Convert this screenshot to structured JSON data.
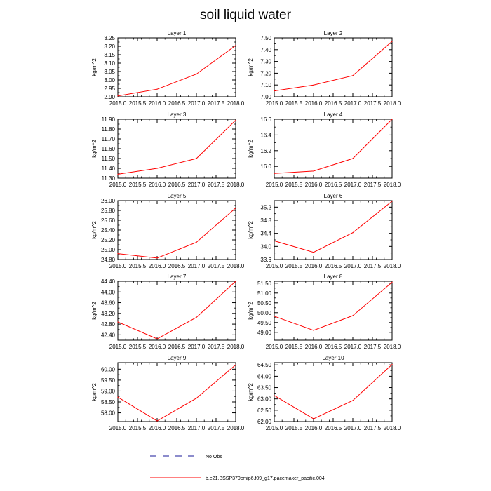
{
  "figure": {
    "title": "soil liquid water",
    "legend": {
      "obs_label": "No Obs",
      "model_label": "b.e21.BSSP370cmip6.f09_g17.pacemaker_pacific.004"
    },
    "colors": {
      "model": "#ff0000",
      "obs": "#1a1a99",
      "axis": "#000000"
    }
  },
  "chart_data": [
    {
      "type": "line",
      "title": "Layer 1",
      "xlabel": "",
      "ylabel": "kg/m^2",
      "xlim": [
        2015.0,
        2018.0
      ],
      "ylim": [
        2.9,
        3.25
      ],
      "xticks": [
        2015.0,
        2015.5,
        2016.0,
        2016.5,
        2017.0,
        2017.5,
        2018.0
      ],
      "xtick_labels": [
        "2015.0",
        "2015.5",
        "2016.0",
        "2016.5",
        "2017.0",
        "2017.5",
        "2018.0"
      ],
      "yticks": [
        2.9,
        2.95,
        3.0,
        3.05,
        3.1,
        3.15,
        3.2,
        3.25
      ],
      "ytick_labels": [
        "2.90",
        "2.95",
        "3.00",
        "3.05",
        "3.10",
        "3.15",
        "3.20",
        "3.25"
      ],
      "series": [
        {
          "name": "b.e21.BSSP370cmip6.f09_g17.pacemaker_pacific.004",
          "x": [
            2015,
            2016,
            2017,
            2018
          ],
          "values": [
            2.905,
            2.945,
            3.035,
            3.205
          ]
        }
      ]
    },
    {
      "type": "line",
      "title": "Layer 2",
      "xlabel": "",
      "ylabel": "kg/m^2",
      "xlim": [
        2015.0,
        2018.0
      ],
      "ylim": [
        7.0,
        7.5
      ],
      "xticks": [
        2015.0,
        2015.5,
        2016.0,
        2016.5,
        2017.0,
        2017.5,
        2018.0
      ],
      "xtick_labels": [
        "2015.0",
        "2015.5",
        "2016.0",
        "2016.5",
        "2017.0",
        "2017.5",
        "2018.0"
      ],
      "yticks": [
        7.0,
        7.1,
        7.2,
        7.3,
        7.4,
        7.5
      ],
      "ytick_labels": [
        "7.00",
        "7.10",
        "7.20",
        "7.30",
        "7.40",
        "7.50"
      ],
      "series": [
        {
          "name": "b.e21.BSSP370cmip6.f09_g17.pacemaker_pacific.004",
          "x": [
            2015,
            2016,
            2017,
            2018
          ],
          "values": [
            7.05,
            7.1,
            7.18,
            7.47
          ]
        }
      ]
    },
    {
      "type": "line",
      "title": "Layer 3",
      "xlabel": "",
      "ylabel": "kg/m^2",
      "xlim": [
        2015.0,
        2018.0
      ],
      "ylim": [
        11.3,
        11.9
      ],
      "xticks": [
        2015.0,
        2015.5,
        2016.0,
        2016.5,
        2017.0,
        2017.5,
        2018.0
      ],
      "xtick_labels": [
        "2015.0",
        "2015.5",
        "2016.0",
        "2016.5",
        "2017.0",
        "2017.5",
        "2018.0"
      ],
      "yticks": [
        11.3,
        11.4,
        11.5,
        11.6,
        11.7,
        11.8,
        11.9
      ],
      "ytick_labels": [
        "11.30",
        "11.40",
        "11.50",
        "11.60",
        "11.70",
        "11.80",
        "11.90"
      ],
      "series": [
        {
          "name": "b.e21.BSSP370cmip6.f09_g17.pacemaker_pacific.004",
          "x": [
            2015,
            2016,
            2017,
            2018
          ],
          "values": [
            11.34,
            11.4,
            11.5,
            11.89
          ]
        }
      ]
    },
    {
      "type": "line",
      "title": "Layer 4",
      "xlabel": "",
      "ylabel": "kg/m^2",
      "xlim": [
        2015.0,
        2018.0
      ],
      "ylim": [
        15.85,
        16.6
      ],
      "xticks": [
        2015.0,
        2015.5,
        2016.0,
        2016.5,
        2017.0,
        2017.5,
        2018.0
      ],
      "xtick_labels": [
        "2015.0",
        "2015.5",
        "2016.0",
        "2016.5",
        "2017.0",
        "2017.5",
        "2018.0"
      ],
      "yticks": [
        16.0,
        16.2,
        16.4,
        16.6
      ],
      "ytick_labels": [
        "16.0",
        "16.2",
        "16.4",
        "16.6"
      ],
      "series": [
        {
          "name": "b.e21.BSSP370cmip6.f09_g17.pacemaker_pacific.004",
          "x": [
            2015,
            2016,
            2017,
            2018
          ],
          "values": [
            15.91,
            15.94,
            16.1,
            16.6
          ]
        }
      ]
    },
    {
      "type": "line",
      "title": "Layer 5",
      "xlabel": "",
      "ylabel": "kg/m^2",
      "xlim": [
        2015.0,
        2018.0
      ],
      "ylim": [
        24.8,
        26.0
      ],
      "xticks": [
        2015.0,
        2015.5,
        2016.0,
        2016.5,
        2017.0,
        2017.5,
        2018.0
      ],
      "xtick_labels": [
        "2015.0",
        "2015.5",
        "2016.0",
        "2016.5",
        "2017.0",
        "2017.5",
        "2018.0"
      ],
      "yticks": [
        24.8,
        25.0,
        25.2,
        25.4,
        25.6,
        25.8,
        26.0
      ],
      "ytick_labels": [
        "24.80",
        "25.00",
        "25.20",
        "25.40",
        "25.60",
        "25.80",
        "26.00"
      ],
      "series": [
        {
          "name": "b.e21.BSSP370cmip6.f09_g17.pacemaker_pacific.004",
          "x": [
            2015,
            2016,
            2017,
            2018
          ],
          "values": [
            24.92,
            24.83,
            25.15,
            25.85
          ]
        }
      ]
    },
    {
      "type": "line",
      "title": "Layer 6",
      "xlabel": "",
      "ylabel": "kg/m^2",
      "xlim": [
        2015.0,
        2018.0
      ],
      "ylim": [
        33.6,
        35.4
      ],
      "xticks": [
        2015.0,
        2015.5,
        2016.0,
        2016.5,
        2017.0,
        2017.5,
        2018.0
      ],
      "xtick_labels": [
        "2015.0",
        "2015.5",
        "2016.0",
        "2016.5",
        "2017.0",
        "2017.5",
        "2018.0"
      ],
      "yticks": [
        33.6,
        34.0,
        34.4,
        34.8,
        35.2
      ],
      "ytick_labels": [
        "33.6",
        "34.0",
        "34.4",
        "34.8",
        "35.2"
      ],
      "series": [
        {
          "name": "b.e21.BSSP370cmip6.f09_g17.pacemaker_pacific.004",
          "x": [
            2015,
            2016,
            2017,
            2018
          ],
          "values": [
            34.17,
            33.82,
            34.42,
            35.38
          ]
        }
      ]
    },
    {
      "type": "line",
      "title": "Layer 7",
      "xlabel": "",
      "ylabel": "kg/m^2",
      "xlim": [
        2015.0,
        2018.0
      ],
      "ylim": [
        42.2,
        44.4
      ],
      "xticks": [
        2015.0,
        2015.5,
        2016.0,
        2016.5,
        2017.0,
        2017.5,
        2018.0
      ],
      "xtick_labels": [
        "2015.0",
        "2015.5",
        "2016.0",
        "2016.5",
        "2017.0",
        "2017.5",
        "2018.0"
      ],
      "yticks": [
        42.4,
        42.8,
        43.2,
        43.6,
        44.0,
        44.4
      ],
      "ytick_labels": [
        "42.40",
        "42.80",
        "43.20",
        "43.60",
        "44.00",
        "44.40"
      ],
      "series": [
        {
          "name": "b.e21.BSSP370cmip6.f09_g17.pacemaker_pacific.004",
          "x": [
            2015,
            2016,
            2017,
            2018
          ],
          "values": [
            42.88,
            42.25,
            43.05,
            44.4
          ]
        }
      ]
    },
    {
      "type": "line",
      "title": "Layer 8",
      "xlabel": "",
      "ylabel": "kg/m^2",
      "xlim": [
        2015.0,
        2018.0
      ],
      "ylim": [
        48.6,
        51.6
      ],
      "xticks": [
        2015.0,
        2015.5,
        2016.0,
        2016.5,
        2017.0,
        2017.5,
        2018.0
      ],
      "xtick_labels": [
        "2015.0",
        "2015.5",
        "2016.0",
        "2016.5",
        "2017.0",
        "2017.5",
        "2018.0"
      ],
      "yticks": [
        49.0,
        49.5,
        50.0,
        50.5,
        51.0,
        51.5
      ],
      "ytick_labels": [
        "49.00",
        "49.50",
        "50.00",
        "50.50",
        "51.00",
        "51.50"
      ],
      "series": [
        {
          "name": "b.e21.BSSP370cmip6.f09_g17.pacemaker_pacific.004",
          "x": [
            2015,
            2016,
            2017,
            2018
          ],
          "values": [
            49.82,
            49.1,
            49.85,
            51.55
          ]
        }
      ]
    },
    {
      "type": "line",
      "title": "Layer 9",
      "xlabel": "",
      "ylabel": "kg/m^2",
      "xlim": [
        2015.0,
        2018.0
      ],
      "ylim": [
        57.6,
        60.3
      ],
      "xticks": [
        2015.0,
        2015.5,
        2016.0,
        2016.5,
        2017.0,
        2017.5,
        2018.0
      ],
      "xtick_labels": [
        "2015.0",
        "2015.5",
        "2016.0",
        "2016.5",
        "2017.0",
        "2017.5",
        "2018.0"
      ],
      "yticks": [
        58.0,
        58.5,
        59.0,
        59.5,
        60.0
      ],
      "ytick_labels": [
        "58.00",
        "58.50",
        "59.00",
        "59.50",
        "60.00"
      ],
      "series": [
        {
          "name": "b.e21.BSSP370cmip6.f09_g17.pacemaker_pacific.004",
          "x": [
            2015,
            2016,
            2017,
            2018
          ],
          "values": [
            58.72,
            57.63,
            58.67,
            60.2
          ]
        }
      ]
    },
    {
      "type": "line",
      "title": "Layer 10",
      "xlabel": "",
      "ylabel": "kg/m^2",
      "xlim": [
        2015.0,
        2018.0
      ],
      "ylim": [
        62.0,
        64.6
      ],
      "xticks": [
        2015.0,
        2015.5,
        2016.0,
        2016.5,
        2017.0,
        2017.5,
        2018.0
      ],
      "xtick_labels": [
        "2015.0",
        "2015.5",
        "2016.0",
        "2016.5",
        "2017.0",
        "2017.5",
        "2018.0"
      ],
      "yticks": [
        62.0,
        62.5,
        63.0,
        63.5,
        64.0,
        64.5
      ],
      "ytick_labels": [
        "62.00",
        "62.50",
        "63.00",
        "63.50",
        "64.00",
        "64.50"
      ],
      "series": [
        {
          "name": "b.e21.BSSP370cmip6.f09_g17.pacemaker_pacific.004",
          "x": [
            2015,
            2016,
            2017,
            2018
          ],
          "values": [
            63.15,
            62.12,
            62.93,
            64.52
          ]
        }
      ]
    }
  ]
}
